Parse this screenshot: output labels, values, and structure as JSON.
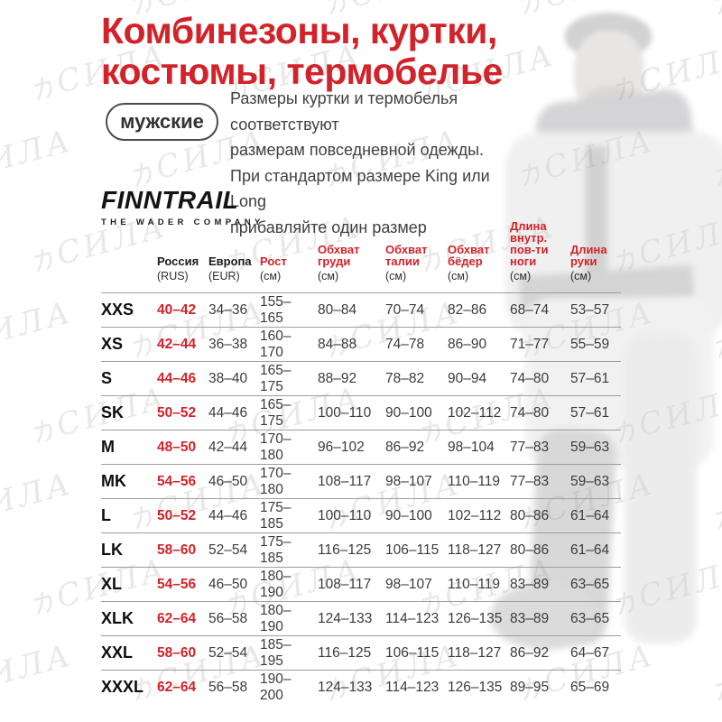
{
  "watermark": {
    "glyph": "力",
    "text": "СИЛА"
  },
  "header": {
    "title": "Комбинезоны, куртки,\nкостюмы, термобелье",
    "badge": "мужские",
    "note": "Размеры куртки и термобелья соответствуют\nразмерам повседневной одежды.\nПри стандартом размере King или Long\nприбавляйте один размер"
  },
  "brand": {
    "name": "FINNTRAIL",
    "tagline": "THE WADER COMPANY"
  },
  "colors": {
    "accent_red": "#d2232a",
    "separator_gray": "#9e9e9e",
    "watermark_gray": "#e9e8e6"
  },
  "table": {
    "keys": [
      "size",
      "rus",
      "eur",
      "height",
      "chest",
      "waist",
      "hips",
      "inseam",
      "arm"
    ],
    "columns": [
      {
        "key": "size",
        "label": "",
        "unit": "",
        "style": "none"
      },
      {
        "key": "rus",
        "label": "Россия",
        "unit": "(RUS)",
        "style": "black"
      },
      {
        "key": "eur",
        "label": "Европа",
        "unit": "(EUR)",
        "style": "black"
      },
      {
        "key": "height",
        "label": "Рост",
        "unit": "(см)",
        "style": "red"
      },
      {
        "key": "chest",
        "label": "Обхват\nгруди",
        "unit": "(см)",
        "style": "red"
      },
      {
        "key": "waist",
        "label": "Обхват\nталии",
        "unit": "(см)",
        "style": "red"
      },
      {
        "key": "hips",
        "label": "Обхват\nбёдер",
        "unit": "(см)",
        "style": "red"
      },
      {
        "key": "inseam",
        "label": "Длина\nвнутр.\nпов-ти\nноги",
        "unit": "(см)",
        "style": "red"
      },
      {
        "key": "arm",
        "label": "Длина\nруки",
        "unit": "(см)",
        "style": "red"
      }
    ],
    "rows": [
      {
        "size": "XXS",
        "rus": "40–42",
        "eur": "34–36",
        "height": "155–165",
        "chest": "80–84",
        "waist": "70–74",
        "hips": "82–86",
        "inseam": "68–74",
        "arm": "53–57"
      },
      {
        "size": "XS",
        "rus": "42–44",
        "eur": "36–38",
        "height": "160–170",
        "chest": "84–88",
        "waist": "74–78",
        "hips": "86–90",
        "inseam": "71–77",
        "arm": "55–59"
      },
      {
        "size": "S",
        "rus": "44–46",
        "eur": "38–40",
        "height": "165–175",
        "chest": "88–92",
        "waist": "78–82",
        "hips": "90–94",
        "inseam": "74–80",
        "arm": "57–61"
      },
      {
        "size": "SK",
        "rus": "50–52",
        "eur": "44–46",
        "height": "165–175",
        "chest": "100–110",
        "waist": "90–100",
        "hips": "102–112",
        "inseam": "74–80",
        "arm": "57–61"
      },
      {
        "size": "M",
        "rus": "48–50",
        "eur": "42–44",
        "height": "170–180",
        "chest": "96–102",
        "waist": "86–92",
        "hips": "98–104",
        "inseam": "77–83",
        "arm": "59–63"
      },
      {
        "size": "MK",
        "rus": "54–56",
        "eur": "46–50",
        "height": "170–180",
        "chest": "108–117",
        "waist": "98–107",
        "hips": "110–119",
        "inseam": "77–83",
        "arm": "59–63"
      },
      {
        "size": "L",
        "rus": "50–52",
        "eur": "44–46",
        "height": "175–185",
        "chest": "100–110",
        "waist": "90–100",
        "hips": "102–112",
        "inseam": "80–86",
        "arm": "61–64"
      },
      {
        "size": "LK",
        "rus": "58–60",
        "eur": "52–54",
        "height": "175–185",
        "chest": "116–125",
        "waist": "106–115",
        "hips": "118–127",
        "inseam": "80–86",
        "arm": "61–64"
      },
      {
        "size": "XL",
        "rus": "54–56",
        "eur": "46–50",
        "height": "180–190",
        "chest": "108–117",
        "waist": "98–107",
        "hips": "110–119",
        "inseam": "83–89",
        "arm": "63–65"
      },
      {
        "size": "XLK",
        "rus": "62–64",
        "eur": "56–58",
        "height": "180–190",
        "chest": "124–133",
        "waist": "114–123",
        "hips": "126–135",
        "inseam": "83–89",
        "arm": "63–65"
      },
      {
        "size": "XXL",
        "rus": "58–60",
        "eur": "52–54",
        "height": "185–195",
        "chest": "116–125",
        "waist": "106–115",
        "hips": "118–127",
        "inseam": "86–92",
        "arm": "64–67"
      },
      {
        "size": "XXXL",
        "rus": "62–64",
        "eur": "56–58",
        "height": "190–200",
        "chest": "124–133",
        "waist": "114–123",
        "hips": "126–135",
        "inseam": "89–95",
        "arm": "65–69"
      }
    ]
  }
}
